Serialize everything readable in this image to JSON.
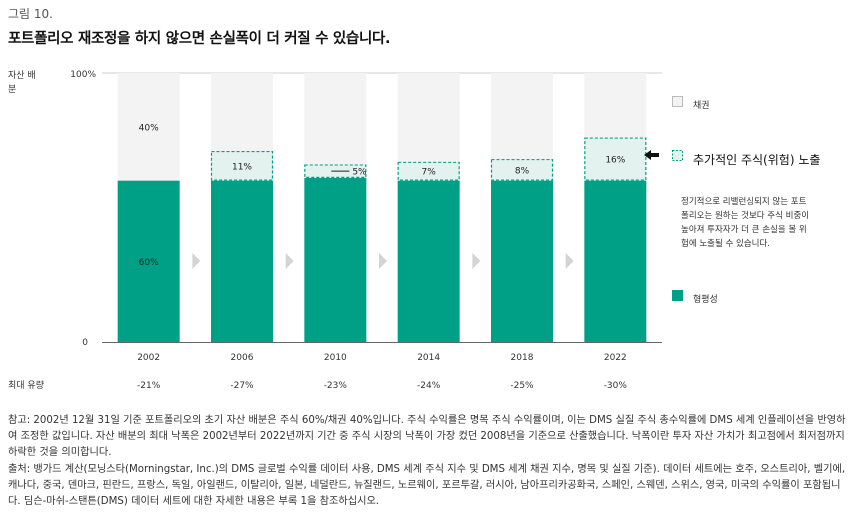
{
  "figure_label": "그림 10.",
  "title": "포트폴리오 재조정을 하지 않으면 손실폭이 더 커질 수 있습니다.",
  "chart_data": {
    "type": "bar",
    "stacked": true,
    "categories": [
      "2002",
      "2006",
      "2010",
      "2014",
      "2018",
      "2022"
    ],
    "ylabel": "자산 배분",
    "yticks": [
      "0",
      "100%"
    ],
    "ylim": [
      0,
      100
    ],
    "series": [
      {
        "name": "형평성",
        "values": [
          60,
          60,
          61,
          60,
          60,
          60
        ],
        "color": "#00a087",
        "labels": [
          "60%",
          "",
          "",
          "",
          "",
          ""
        ]
      },
      {
        "name": "추가적인 주식(위험) 노출",
        "values": [
          0,
          11,
          5,
          7,
          8,
          16
        ],
        "color": "#e3f2ee",
        "labels": [
          "",
          "11%",
          "5%",
          "7%",
          "8%",
          "16%"
        ]
      },
      {
        "name": "채권",
        "values": [
          40,
          29,
          34,
          33,
          32,
          24
        ],
        "color": "#f3f3f3",
        "labels": [
          "40%",
          "",
          "",
          "",
          "",
          ""
        ]
      }
    ],
    "max_drawdown": {
      "label": "최대 유량",
      "values": [
        "-21%",
        "-27%",
        "-23%",
        "-24%",
        "-25%",
        "-30%"
      ]
    }
  },
  "legend": {
    "bond": "채권",
    "extra": "추가적인 주식(위험) 노출",
    "equity": "형평성",
    "note": "정기적으로 리밸런싱되지 않는 포트폴리오는 원하는 것보다 주식 비중이 높아져 투자자가 더 큰 손실을 볼 위험에 노출될 수 있습니다."
  },
  "footnotes": {
    "note": "참고: 2002년 12월 31일 기준 포트폴리오의 초기 자산 배분은 주식 60%/채권 40%입니다. 주식 수익률은 명목 주식 수익률이며, 이는 DMS 실질 주식 총수익률에 DMS 세계 인플레이션을 반영하여 조정한 값입니다. 자산 배분의 최대 낙폭은 2002년부터 2022년까지 기간 중 주식 시장의 낙폭이 가장 컸던 2008년을 기준으로 산출했습니다. 낙폭이란 투자 자산 가치가 최고점에서 최저점까지 하락한 것을 의미합니다.",
    "source": "출처: 뱅가드 계산(모닝스타(Morningstar, Inc.)의 DMS 글로벌 수익률 데이터 사용, DMS 세계 주식 지수 및 DMS 세계 채권 지수, 명목 및 실질 기준). 데이터 세트에는 호주, 오스트리아, 벨기에, 캐나다, 중국, 덴마크, 핀란드, 프랑스, 독일, 아일랜드, 이탈리아, 일본, 네덜란드, 뉴질랜드, 노르웨이, 포르투갈, 러시아, 남아프리카공화국, 스페인, 스웨덴, 스위스, 영국, 미국의 수익률이 포함됩니다. 딤슨-마쉬-스탠튼(DMS) 데이터 세트에 대한 자세한 내용은 부록 1을 참조하십시오."
  }
}
